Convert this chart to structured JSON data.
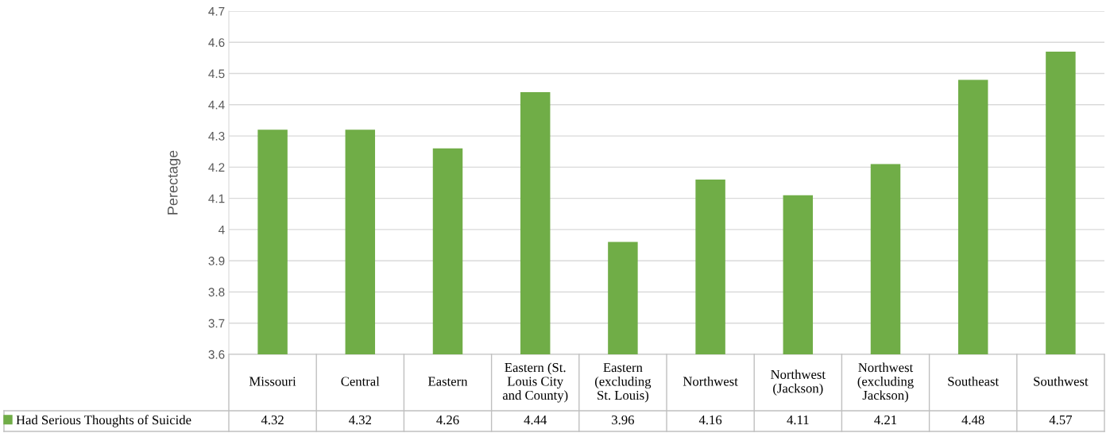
{
  "chart_data": {
    "type": "bar",
    "ylabel": "Perectage",
    "categories": [
      "Missouri",
      "Central",
      "Eastern",
      "Eastern (St. Louis City and County)",
      "Eastern (excluding St. Louis)",
      "Northwest",
      "Northwest (Jackson)",
      "Northwest (excluding Jackson)",
      "Southeast",
      "Southwest"
    ],
    "series": [
      {
        "name": "Had Serious Thoughts of Suicide",
        "color": "#70ad47",
        "values": [
          4.32,
          4.32,
          4.26,
          4.44,
          3.96,
          4.16,
          4.11,
          4.21,
          4.48,
          4.57
        ]
      }
    ],
    "ylim": [
      3.6,
      4.7
    ],
    "yticks": [
      3.6,
      3.7,
      3.8,
      3.9,
      4,
      4.1,
      4.2,
      4.3,
      4.4,
      4.5,
      4.6,
      4.7
    ],
    "grid": "y",
    "legend": "bottom left",
    "data_labels": true
  }
}
